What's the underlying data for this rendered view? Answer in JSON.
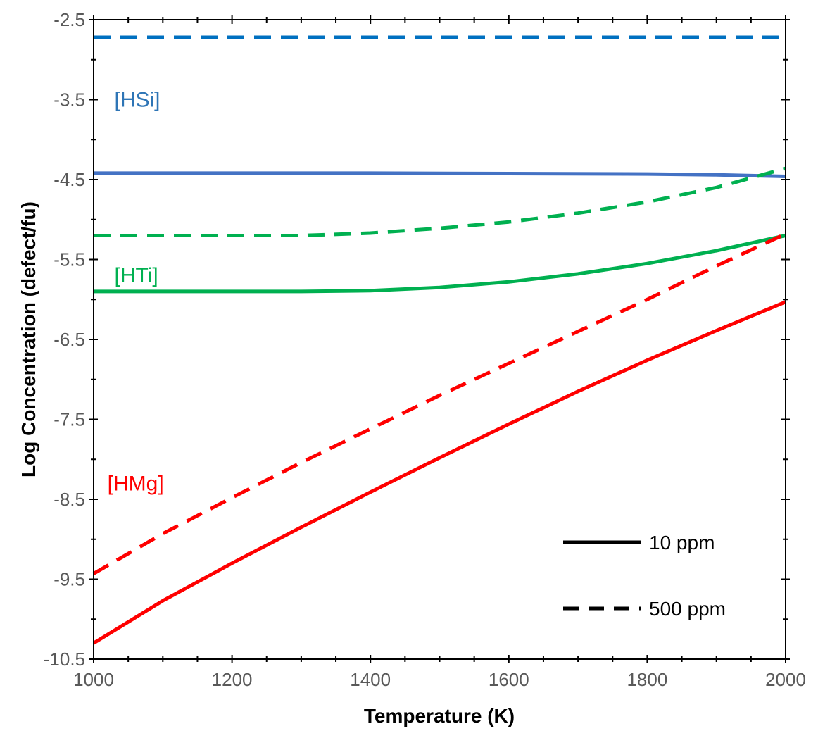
{
  "chart_data": {
    "type": "line",
    "title": "",
    "xlabel": "Temperature (K)",
    "ylabel": "Log Concentration (defect/fu)",
    "xlim": [
      1000,
      2000
    ],
    "ylim": [
      -10.5,
      -2.5
    ],
    "x_ticks": [
      "1000",
      "1200",
      "1400",
      "1600",
      "1800",
      "2000"
    ],
    "y_ticks": [
      "-2.5",
      "-3.5",
      "-4.5",
      "-5.5",
      "-6.5",
      "-7.5",
      "-8.5",
      "-9.5",
      "-10.5"
    ],
    "grid": false,
    "legend": {
      "placement": "bottom-right",
      "entries": [
        {
          "label": "10 ppm",
          "style": "solid"
        },
        {
          "label": "500 ppm",
          "style": "dashed"
        }
      ]
    },
    "series_labels": [
      {
        "text": "[HSi]",
        "color": "#2e75b6",
        "anchor": {
          "x": 1030,
          "y": -3.5
        }
      },
      {
        "text": "[HTi]",
        "color": "#00b050",
        "anchor": {
          "x": 1030,
          "y": -5.7
        }
      },
      {
        "text": "[HMg]",
        "color": "#ff0000",
        "anchor": {
          "x": 1020,
          "y": -8.3
        }
      }
    ],
    "series": [
      {
        "defect": "HSi",
        "concentration": "10 ppm",
        "style": "solid",
        "color": "#4472c4",
        "x": [
          1000,
          1200,
          1400,
          1600,
          1800,
          1900,
          2000
        ],
        "y": [
          -4.42,
          -4.42,
          -4.42,
          -4.425,
          -4.43,
          -4.44,
          -4.46
        ]
      },
      {
        "defect": "HSi",
        "concentration": "500 ppm",
        "style": "dashed",
        "color": "#0070c0",
        "x": [
          1000,
          2000
        ],
        "y": [
          -2.72,
          -2.72
        ]
      },
      {
        "defect": "HTi",
        "concentration": "10 ppm",
        "style": "solid",
        "color": "#00b050",
        "x": [
          1000,
          1100,
          1200,
          1300,
          1400,
          1500,
          1600,
          1700,
          1800,
          1900,
          2000
        ],
        "y": [
          -5.9,
          -5.9,
          -5.9,
          -5.9,
          -5.89,
          -5.85,
          -5.78,
          -5.68,
          -5.55,
          -5.39,
          -5.2
        ]
      },
      {
        "defect": "HTi",
        "concentration": "500 ppm",
        "style": "dashed",
        "color": "#00b050",
        "x": [
          1000,
          1100,
          1200,
          1300,
          1400,
          1500,
          1600,
          1700,
          1800,
          1900,
          2000
        ],
        "y": [
          -5.2,
          -5.2,
          -5.2,
          -5.2,
          -5.17,
          -5.11,
          -5.03,
          -4.92,
          -4.78,
          -4.6,
          -4.36
        ]
      },
      {
        "defect": "HMg",
        "concentration": "10 ppm",
        "style": "solid",
        "color": "#ff0000",
        "x": [
          1000,
          1100,
          1200,
          1300,
          1400,
          1500,
          1600,
          1700,
          1800,
          1900,
          2000
        ],
        "y": [
          -10.3,
          -9.77,
          -9.3,
          -8.85,
          -8.41,
          -7.98,
          -7.56,
          -7.15,
          -6.76,
          -6.39,
          -6.03
        ]
      },
      {
        "defect": "HMg",
        "concentration": "500 ppm",
        "style": "dashed",
        "color": "#ff0000",
        "x": [
          1000,
          1100,
          1200,
          1300,
          1400,
          1500,
          1600,
          1700,
          1800,
          1900,
          2000
        ],
        "y": [
          -9.43,
          -8.93,
          -8.48,
          -8.04,
          -7.62,
          -7.2,
          -6.8,
          -6.4,
          -6.0,
          -5.58,
          -5.18
        ]
      }
    ]
  }
}
